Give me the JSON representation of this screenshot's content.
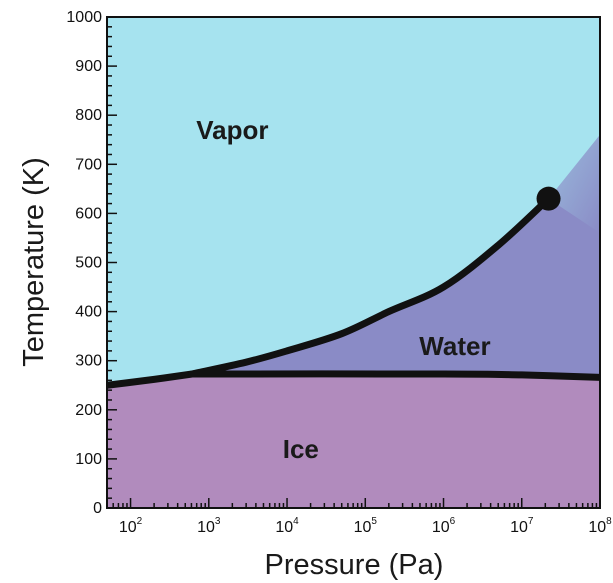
{
  "chart_data": {
    "type": "area",
    "xlabel": "Pressure (Pa)",
    "ylabel": "Temperature (K)",
    "x_scale": "log",
    "xlim": [
      50,
      100000000
    ],
    "ylim": [
      0,
      1000
    ],
    "x_ticks": [
      {
        "value": 100,
        "base": "10",
        "exp": "2"
      },
      {
        "value": 1000,
        "base": "10",
        "exp": "3"
      },
      {
        "value": 10000,
        "base": "10",
        "exp": "4"
      },
      {
        "value": 100000,
        "base": "10",
        "exp": "5"
      },
      {
        "value": 1000000,
        "base": "10",
        "exp": "6"
      },
      {
        "value": 10000000,
        "base": "10",
        "exp": "7"
      },
      {
        "value": 100000000,
        "base": "10",
        "exp": "8"
      }
    ],
    "y_ticks": [
      "0",
      "100",
      "200",
      "300",
      "400",
      "500",
      "600",
      "700",
      "800",
      "900",
      "1000"
    ],
    "regions": [
      {
        "name": "Vapor",
        "color": "#a6e3ef",
        "label_at": [
          2000,
          770
        ]
      },
      {
        "name": "Water",
        "color": "#8a8bc6",
        "label_at": [
          1400000,
          330
        ]
      },
      {
        "name": "Ice",
        "color": "#b18bbd",
        "label_at": [
          15000,
          120
        ]
      }
    ],
    "curves": [
      {
        "name": "sublimation",
        "points": [
          [
            50,
            250
          ],
          [
            200,
            262
          ],
          [
            611,
            273
          ]
        ]
      },
      {
        "name": "vaporization",
        "points": [
          [
            611,
            273
          ],
          [
            3000,
            297
          ],
          [
            10000,
            320
          ],
          [
            50000,
            355
          ],
          [
            200000,
            400
          ],
          [
            1000000,
            450
          ],
          [
            5000000,
            535
          ],
          [
            22000000,
            630
          ]
        ]
      },
      {
        "name": "melting",
        "points": [
          [
            611,
            273
          ],
          [
            1000000,
            273
          ],
          [
            10000000,
            271
          ],
          [
            100000000,
            266
          ]
        ]
      }
    ],
    "critical_point": {
      "x": 22000000,
      "y": 630
    },
    "line_color": "#111111"
  }
}
